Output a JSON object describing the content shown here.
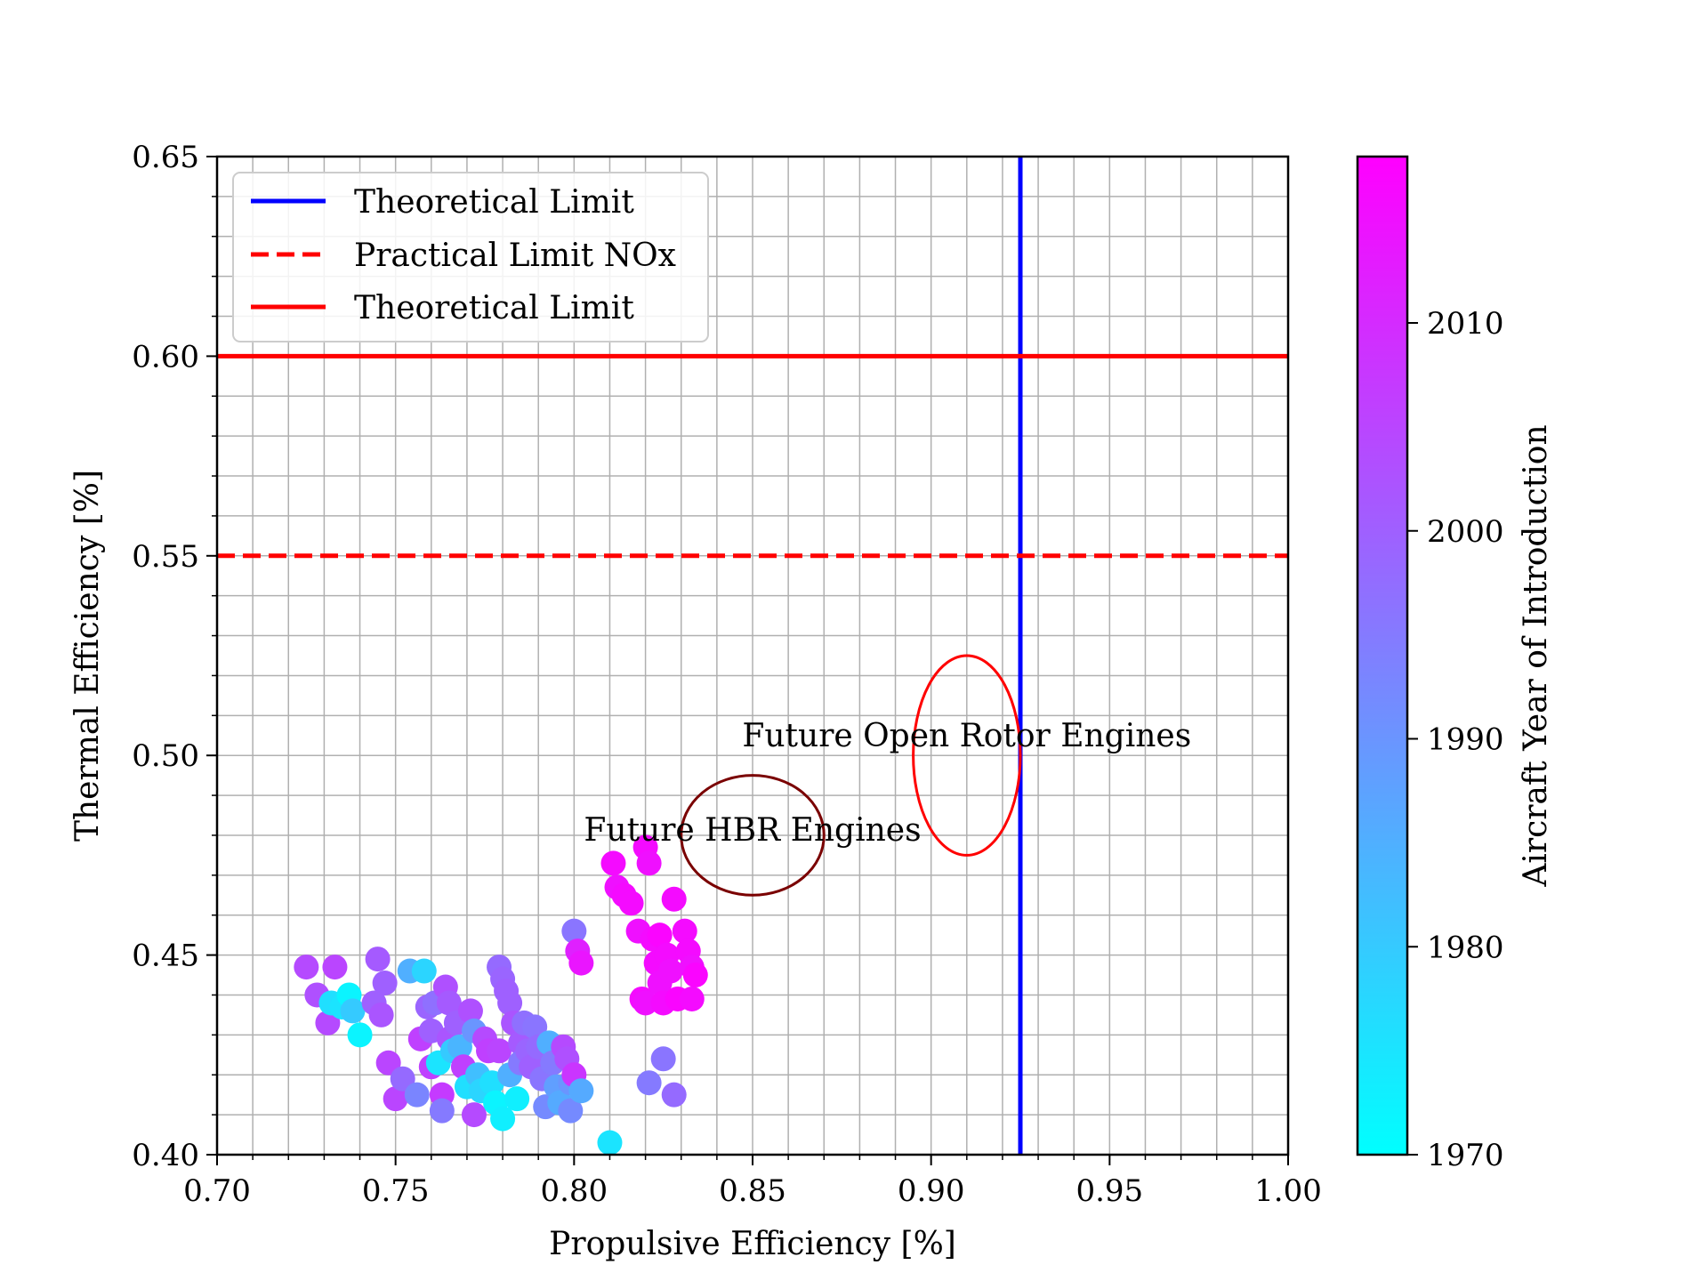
{
  "chart_data": {
    "type": "scatter",
    "title": "",
    "xlabel": "Propulsive Efficiency [%]",
    "ylabel": "Thermal Efficiency [%]",
    "xlim": [
      0.7,
      1.0
    ],
    "ylim": [
      0.4,
      0.65
    ],
    "xticks": [
      "0.70",
      "0.75",
      "0.80",
      "0.85",
      "0.90",
      "0.95",
      "1.00"
    ],
    "yticks": [
      "0.40",
      "0.45",
      "0.50",
      "0.55",
      "0.60",
      "0.65"
    ],
    "grid": true,
    "legend_position": "upper-left",
    "legend": [
      {
        "label": "Theoretical Limit",
        "style": "solid",
        "color": "#0000ff"
      },
      {
        "label": "Practical Limit NOx",
        "style": "dashed",
        "color": "#ff0000"
      },
      {
        "label": "Theoretical Limit",
        "style": "solid",
        "color": "#ff0000"
      }
    ],
    "lines": [
      {
        "orientation": "vertical",
        "value": 0.925,
        "color": "#0000ff",
        "style": "solid"
      },
      {
        "orientation": "horizontal",
        "value": 0.55,
        "color": "#ff0000",
        "style": "dashed"
      },
      {
        "orientation": "horizontal",
        "value": 0.6,
        "color": "#ff0000",
        "style": "solid"
      }
    ],
    "ellipses": [
      {
        "label": "Future HBR Engines",
        "cx": 0.85,
        "cy": 0.48,
        "rx": 0.02,
        "ry": 0.015,
        "color": "#7a0000"
      },
      {
        "label": "Future Open Rotor Engines",
        "cx": 0.91,
        "cy": 0.5,
        "rx": 0.015,
        "ry": 0.025,
        "color": "#ff0000"
      }
    ],
    "colorbar": {
      "label": "Aircraft Year of Introduction",
      "min": 1970,
      "max": 2018,
      "ticks": [
        "1970",
        "1980",
        "1990",
        "2000",
        "2010"
      ],
      "colormap": "cool",
      "color_low": "#00ffff",
      "color_high": "#ff00ff"
    },
    "points": [
      {
        "x": 0.725,
        "y": 0.447,
        "year": 2004
      },
      {
        "x": 0.728,
        "y": 0.44,
        "year": 2003
      },
      {
        "x": 0.731,
        "y": 0.433,
        "year": 2004
      },
      {
        "x": 0.732,
        "y": 0.438,
        "year": 1976
      },
      {
        "x": 0.733,
        "y": 0.447,
        "year": 2005
      },
      {
        "x": 0.735,
        "y": 0.437,
        "year": 1975
      },
      {
        "x": 0.737,
        "y": 0.44,
        "year": 1972
      },
      {
        "x": 0.738,
        "y": 0.436,
        "year": 1980
      },
      {
        "x": 0.74,
        "y": 0.43,
        "year": 1972
      },
      {
        "x": 0.744,
        "y": 0.438,
        "year": 2000
      },
      {
        "x": 0.745,
        "y": 0.449,
        "year": 2001
      },
      {
        "x": 0.746,
        "y": 0.435,
        "year": 2002
      },
      {
        "x": 0.747,
        "y": 0.443,
        "year": 2000
      },
      {
        "x": 0.748,
        "y": 0.423,
        "year": 2005
      },
      {
        "x": 0.75,
        "y": 0.414,
        "year": 2005
      },
      {
        "x": 0.752,
        "y": 0.419,
        "year": 1998
      },
      {
        "x": 0.754,
        "y": 0.446,
        "year": 1985
      },
      {
        "x": 0.756,
        "y": 0.415,
        "year": 1993
      },
      {
        "x": 0.757,
        "y": 0.429,
        "year": 2006
      },
      {
        "x": 0.758,
        "y": 0.446,
        "year": 1978
      },
      {
        "x": 0.759,
        "y": 0.437,
        "year": 1999
      },
      {
        "x": 0.76,
        "y": 0.431,
        "year": 2000
      },
      {
        "x": 0.76,
        "y": 0.422,
        "year": 2006
      },
      {
        "x": 0.761,
        "y": 0.438,
        "year": 1997
      },
      {
        "x": 0.762,
        "y": 0.423,
        "year": 1975
      },
      {
        "x": 0.763,
        "y": 0.415,
        "year": 2007
      },
      {
        "x": 0.763,
        "y": 0.411,
        "year": 1995
      },
      {
        "x": 0.764,
        "y": 0.442,
        "year": 2003
      },
      {
        "x": 0.765,
        "y": 0.438,
        "year": 2001
      },
      {
        "x": 0.765,
        "y": 0.429,
        "year": 2002
      },
      {
        "x": 0.766,
        "y": 0.426,
        "year": 1980
      },
      {
        "x": 0.767,
        "y": 0.433,
        "year": 2000
      },
      {
        "x": 0.768,
        "y": 0.427,
        "year": 1984
      },
      {
        "x": 0.769,
        "y": 0.422,
        "year": 2006
      },
      {
        "x": 0.77,
        "y": 0.417,
        "year": 1976
      },
      {
        "x": 0.771,
        "y": 0.436,
        "year": 2003
      },
      {
        "x": 0.772,
        "y": 0.431,
        "year": 1990
      },
      {
        "x": 0.772,
        "y": 0.41,
        "year": 2004
      },
      {
        "x": 0.773,
        "y": 0.42,
        "year": 1982
      },
      {
        "x": 0.774,
        "y": 0.416,
        "year": 1978
      },
      {
        "x": 0.775,
        "y": 0.429,
        "year": 2004
      },
      {
        "x": 0.776,
        "y": 0.426,
        "year": 2006
      },
      {
        "x": 0.777,
        "y": 0.418,
        "year": 1976
      },
      {
        "x": 0.778,
        "y": 0.413,
        "year": 1972
      },
      {
        "x": 0.779,
        "y": 0.426,
        "year": 2005
      },
      {
        "x": 0.779,
        "y": 0.447,
        "year": 1998
      },
      {
        "x": 0.78,
        "y": 0.444,
        "year": 1999
      },
      {
        "x": 0.78,
        "y": 0.409,
        "year": 1973
      },
      {
        "x": 0.781,
        "y": 0.441,
        "year": 2000
      },
      {
        "x": 0.782,
        "y": 0.438,
        "year": 2000
      },
      {
        "x": 0.782,
        "y": 0.42,
        "year": 1985
      },
      {
        "x": 0.783,
        "y": 0.433,
        "year": 2002
      },
      {
        "x": 0.784,
        "y": 0.414,
        "year": 1973
      },
      {
        "x": 0.785,
        "y": 0.428,
        "year": 2001
      },
      {
        "x": 0.785,
        "y": 0.423,
        "year": 1995
      },
      {
        "x": 0.786,
        "y": 0.433,
        "year": 1997
      },
      {
        "x": 0.787,
        "y": 0.426,
        "year": 1999
      },
      {
        "x": 0.788,
        "y": 0.422,
        "year": 2000
      },
      {
        "x": 0.789,
        "y": 0.432,
        "year": 1996
      },
      {
        "x": 0.79,
        "y": 0.427,
        "year": 1998
      },
      {
        "x": 0.791,
        "y": 0.419,
        "year": 1996
      },
      {
        "x": 0.792,
        "y": 0.412,
        "year": 1992
      },
      {
        "x": 0.793,
        "y": 0.428,
        "year": 1985
      },
      {
        "x": 0.794,
        "y": 0.423,
        "year": 1995
      },
      {
        "x": 0.795,
        "y": 0.417,
        "year": 1988
      },
      {
        "x": 0.796,
        "y": 0.413,
        "year": 1986
      },
      {
        "x": 0.797,
        "y": 0.427,
        "year": 2004
      },
      {
        "x": 0.798,
        "y": 0.424,
        "year": 2003
      },
      {
        "x": 0.799,
        "y": 0.418,
        "year": 1990
      },
      {
        "x": 0.799,
        "y": 0.411,
        "year": 1992
      },
      {
        "x": 0.8,
        "y": 0.456,
        "year": 1996
      },
      {
        "x": 0.8,
        "y": 0.42,
        "year": 2008
      },
      {
        "x": 0.801,
        "y": 0.451,
        "year": 2012
      },
      {
        "x": 0.802,
        "y": 0.448,
        "year": 2014
      },
      {
        "x": 0.802,
        "y": 0.416,
        "year": 1986
      },
      {
        "x": 0.81,
        "y": 0.403,
        "year": 1975
      },
      {
        "x": 0.811,
        "y": 0.473,
        "year": 2016
      },
      {
        "x": 0.812,
        "y": 0.467,
        "year": 2015
      },
      {
        "x": 0.814,
        "y": 0.465,
        "year": 2016
      },
      {
        "x": 0.816,
        "y": 0.463,
        "year": 2016
      },
      {
        "x": 0.818,
        "y": 0.456,
        "year": 2015
      },
      {
        "x": 0.819,
        "y": 0.439,
        "year": 2016
      },
      {
        "x": 0.82,
        "y": 0.438,
        "year": 2015
      },
      {
        "x": 0.82,
        "y": 0.477,
        "year": 2016
      },
      {
        "x": 0.821,
        "y": 0.473,
        "year": 2015
      },
      {
        "x": 0.821,
        "y": 0.418,
        "year": 1995
      },
      {
        "x": 0.822,
        "y": 0.454,
        "year": 2016
      },
      {
        "x": 0.823,
        "y": 0.448,
        "year": 2016
      },
      {
        "x": 0.824,
        "y": 0.443,
        "year": 2015
      },
      {
        "x": 0.824,
        "y": 0.455,
        "year": 2017
      },
      {
        "x": 0.825,
        "y": 0.424,
        "year": 1996
      },
      {
        "x": 0.825,
        "y": 0.438,
        "year": 2016
      },
      {
        "x": 0.826,
        "y": 0.45,
        "year": 2016
      },
      {
        "x": 0.827,
        "y": 0.446,
        "year": 2015
      },
      {
        "x": 0.828,
        "y": 0.464,
        "year": 2016
      },
      {
        "x": 0.828,
        "y": 0.415,
        "year": 1998
      },
      {
        "x": 0.829,
        "y": 0.439,
        "year": 2017
      },
      {
        "x": 0.831,
        "y": 0.456,
        "year": 2016
      },
      {
        "x": 0.832,
        "y": 0.451,
        "year": 2016
      },
      {
        "x": 0.833,
        "y": 0.447,
        "year": 2015
      },
      {
        "x": 0.833,
        "y": 0.439,
        "year": 2016
      },
      {
        "x": 0.834,
        "y": 0.445,
        "year": 2017
      }
    ]
  }
}
